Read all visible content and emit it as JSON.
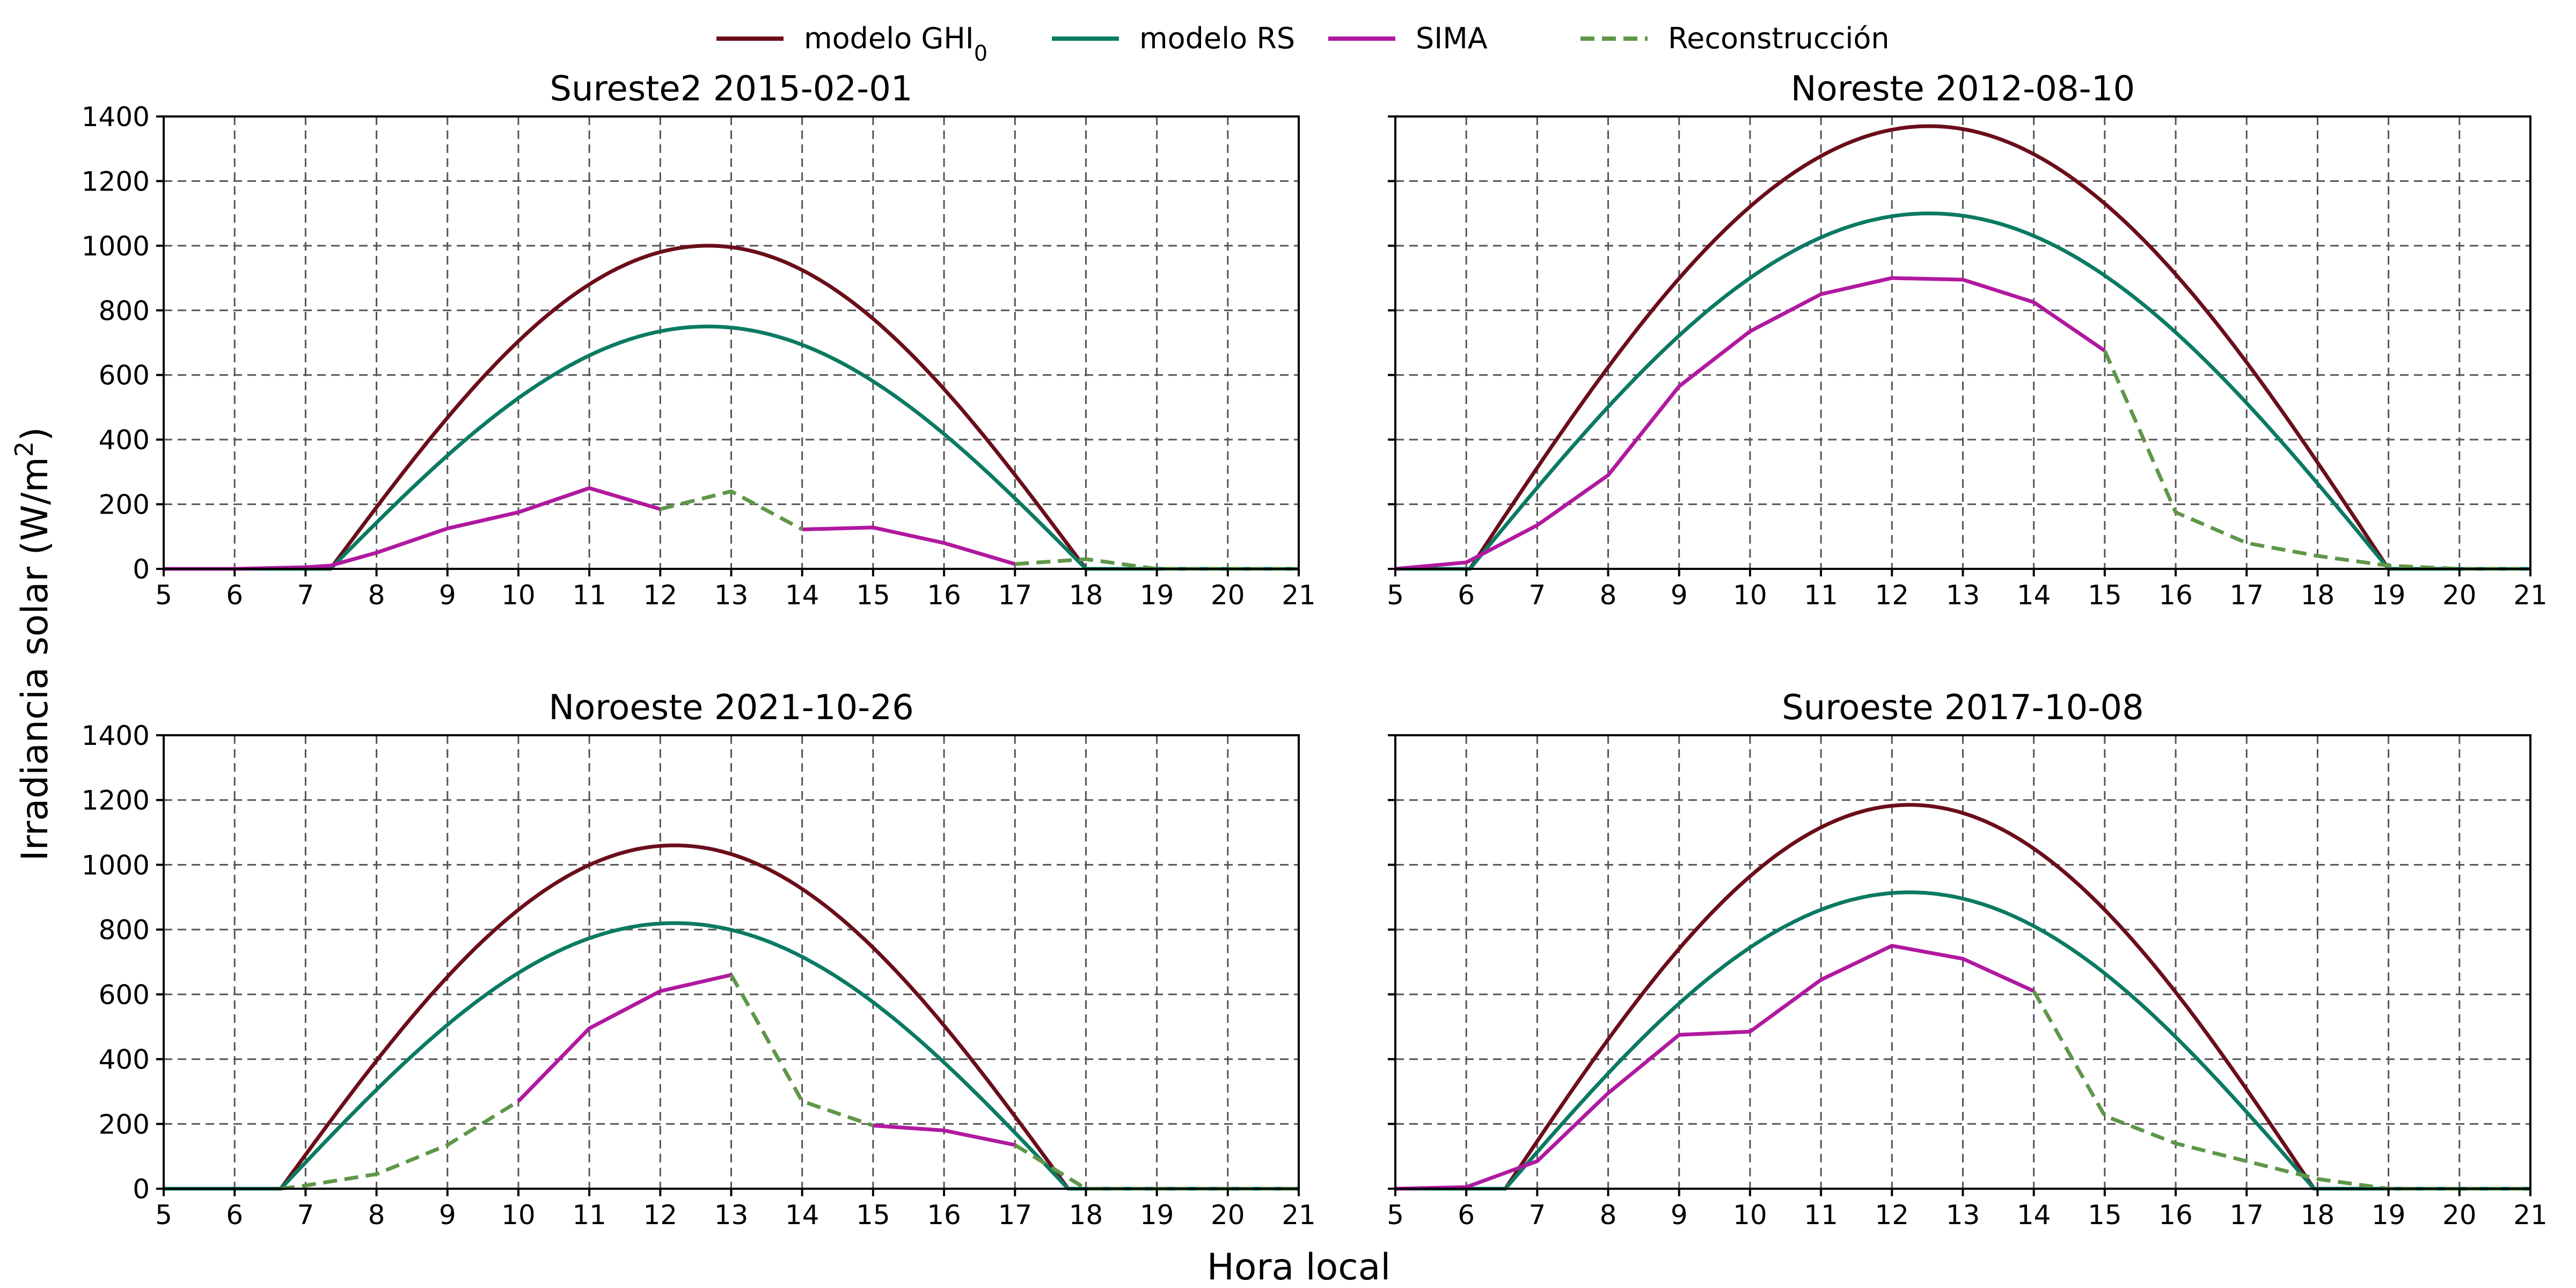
{
  "legend": [
    {
      "key": "ghi0",
      "label": "modelo GHI",
      "sub": "0",
      "color": "#6b0d1a",
      "dash": false
    },
    {
      "key": "rs",
      "label": "modelo RS",
      "color": "#0b7a63",
      "dash": false
    },
    {
      "key": "sima",
      "label": "SIMA",
      "color": "#b0199f",
      "dash": false
    },
    {
      "key": "rec",
      "label": "Reconstrucción",
      "color": "#5e9748",
      "dash": true
    }
  ],
  "xlabel": "Hora local",
  "ylabel": "Irradiancia solar (W/m",
  "ylabel_sup": "2",
  "ylabel_close": ")",
  "chart_data": [
    {
      "type": "line",
      "title": "Sureste2 2015-02-01",
      "xlim": [
        5,
        21
      ],
      "ylim": [
        0,
        1400
      ],
      "xticks": [
        5,
        6,
        7,
        8,
        9,
        10,
        11,
        12,
        13,
        14,
        15,
        16,
        17,
        18,
        19,
        20,
        21
      ],
      "yticks": [
        0,
        200,
        400,
        600,
        800,
        1000,
        1200,
        1400
      ],
      "grid": true,
      "model": {
        "ghi0": {
          "start": 7.35,
          "end": 18.0,
          "peak": 1000
        },
        "rs": {
          "start": 7.35,
          "end": 18.0,
          "peak": 750
        }
      },
      "series": [
        {
          "key": "ghi0",
          "x": [
            5,
            7.35,
            7.35,
            18.0,
            21
          ],
          "y": [
            0,
            0,
            null,
            null,
            0
          ]
        },
        {
          "key": "rs",
          "x": [
            5,
            7.35
          ],
          "y": [
            0,
            0
          ]
        },
        {
          "key": "sima",
          "x": [
            5,
            6,
            7,
            7.35,
            8,
            9,
            10,
            11,
            12
          ],
          "y": [
            0,
            0,
            5,
            10,
            50,
            125,
            175,
            250,
            185
          ]
        },
        {
          "key": "sima",
          "x": [
            14,
            15,
            16,
            17
          ],
          "y": [
            122,
            128,
            80,
            15
          ]
        },
        {
          "key": "rec",
          "x": [
            12,
            13,
            14
          ],
          "y": [
            185,
            240,
            122
          ]
        },
        {
          "key": "rec",
          "x": [
            17,
            18,
            19,
            20,
            21
          ],
          "y": [
            15,
            30,
            0,
            0,
            0
          ]
        }
      ]
    },
    {
      "type": "line",
      "title": "Noreste 2012-08-10",
      "xlim": [
        5,
        21
      ],
      "ylim": [
        0,
        1400
      ],
      "xticks": [
        5,
        6,
        7,
        8,
        9,
        10,
        11,
        12,
        13,
        14,
        15,
        16,
        17,
        18,
        19,
        20,
        21
      ],
      "yticks": [
        0,
        200,
        400,
        600,
        800,
        1000,
        1200,
        1400
      ],
      "grid": true,
      "model": {
        "ghi0": {
          "start": 6.05,
          "end": 19.0,
          "peak": 1370
        },
        "rs": {
          "start": 6.05,
          "end": 19.0,
          "peak": 1100
        }
      },
      "series": [
        {
          "key": "sima",
          "x": [
            5,
            6,
            7,
            8,
            9,
            10,
            11,
            12,
            13,
            14,
            15
          ],
          "y": [
            0,
            20,
            135,
            290,
            565,
            735,
            850,
            900,
            895,
            825,
            675
          ]
        },
        {
          "key": "rec",
          "x": [
            15,
            16,
            17,
            18,
            19,
            20,
            21
          ],
          "y": [
            675,
            175,
            80,
            40,
            10,
            0,
            0
          ]
        }
      ]
    },
    {
      "type": "line",
      "title": "Noroeste 2021-10-26",
      "xlim": [
        5,
        21
      ],
      "ylim": [
        0,
        1400
      ],
      "xticks": [
        5,
        6,
        7,
        8,
        9,
        10,
        11,
        12,
        13,
        14,
        15,
        16,
        17,
        18,
        19,
        20,
        21
      ],
      "yticks": [
        0,
        200,
        400,
        600,
        800,
        1000,
        1200,
        1400
      ],
      "grid": true,
      "model": {
        "ghi0": {
          "start": 6.65,
          "end": 17.75,
          "peak": 1060
        },
        "rs": {
          "start": 6.65,
          "end": 17.75,
          "peak": 820
        }
      },
      "series": [
        {
          "key": "rec",
          "x": [
            6.65,
            7,
            8,
            9,
            10
          ],
          "y": [
            0,
            10,
            45,
            135,
            270
          ]
        },
        {
          "key": "sima",
          "x": [
            10,
            11,
            12,
            13
          ],
          "y": [
            270,
            495,
            610,
            660
          ]
        },
        {
          "key": "rec",
          "x": [
            13,
            14,
            15
          ],
          "y": [
            660,
            270,
            195
          ]
        },
        {
          "key": "sima",
          "x": [
            15,
            16,
            17
          ],
          "y": [
            195,
            180,
            135
          ]
        },
        {
          "key": "rec",
          "x": [
            17,
            18,
            19,
            20,
            21
          ],
          "y": [
            135,
            0,
            0,
            0,
            0
          ]
        }
      ]
    },
    {
      "type": "line",
      "title": "Suroeste 2017-10-08",
      "xlim": [
        5,
        21
      ],
      "ylim": [
        0,
        1400
      ],
      "xticks": [
        5,
        6,
        7,
        8,
        9,
        10,
        11,
        12,
        13,
        14,
        15,
        16,
        17,
        18,
        19,
        20,
        21
      ],
      "yticks": [
        0,
        200,
        400,
        600,
        800,
        1000,
        1200,
        1400
      ],
      "grid": true,
      "model": {
        "ghi0": {
          "start": 6.55,
          "end": 17.95,
          "peak": 1185
        },
        "rs": {
          "start": 6.55,
          "end": 17.95,
          "peak": 915
        }
      },
      "series": [
        {
          "key": "sima",
          "x": [
            5,
            6,
            7,
            8,
            9,
            10,
            11,
            12,
            13,
            14
          ],
          "y": [
            0,
            5,
            85,
            295,
            475,
            485,
            645,
            750,
            710,
            610
          ]
        },
        {
          "key": "rec",
          "x": [
            14,
            15,
            16,
            17,
            18,
            19,
            20,
            21
          ],
          "y": [
            610,
            225,
            140,
            85,
            30,
            0,
            0,
            0
          ]
        }
      ]
    }
  ]
}
